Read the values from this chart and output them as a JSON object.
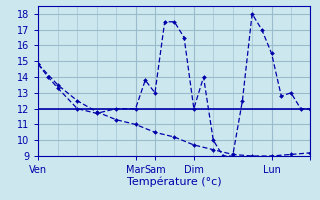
{
  "xlabel": "Température (°c)",
  "bg": "#cce8ee",
  "grid_color": "#99bbcc",
  "lc": "#0000aa",
  "xlim": [
    0,
    56
  ],
  "ylim": [
    9,
    18.5
  ],
  "yticks": [
    9,
    10,
    11,
    12,
    13,
    14,
    15,
    16,
    17,
    18
  ],
  "xtick_positions": [
    0,
    20,
    24,
    32,
    48,
    56
  ],
  "xtick_labels": [
    "Ven",
    "Mar",
    "Sam",
    "Dim",
    "Lun",
    ""
  ],
  "s1x": [
    0,
    2,
    4,
    8,
    12,
    16,
    20,
    22,
    24,
    26,
    28,
    30,
    32,
    34,
    36,
    38,
    40,
    42,
    44,
    46,
    48,
    50,
    52,
    54,
    56
  ],
  "s1y": [
    14.8,
    14.0,
    13.3,
    12.0,
    11.7,
    12.0,
    12.0,
    13.8,
    13.0,
    17.5,
    17.5,
    16.5,
    12.0,
    14.0,
    10.0,
    9.0,
    9.0,
    12.5,
    18.0,
    17.0,
    15.5,
    12.8,
    13.0,
    12.0,
    12.0
  ],
  "s2x": [
    0,
    4,
    8,
    12,
    16,
    20,
    24,
    28,
    32,
    36,
    40,
    44,
    48,
    52,
    56
  ],
  "s2y": [
    14.8,
    13.5,
    12.5,
    11.8,
    11.3,
    11.0,
    10.5,
    10.2,
    9.7,
    9.4,
    9.1,
    9.0,
    9.0,
    9.1,
    9.2
  ],
  "s3x": [
    0,
    56
  ],
  "s3y": [
    12.0,
    12.0
  ]
}
